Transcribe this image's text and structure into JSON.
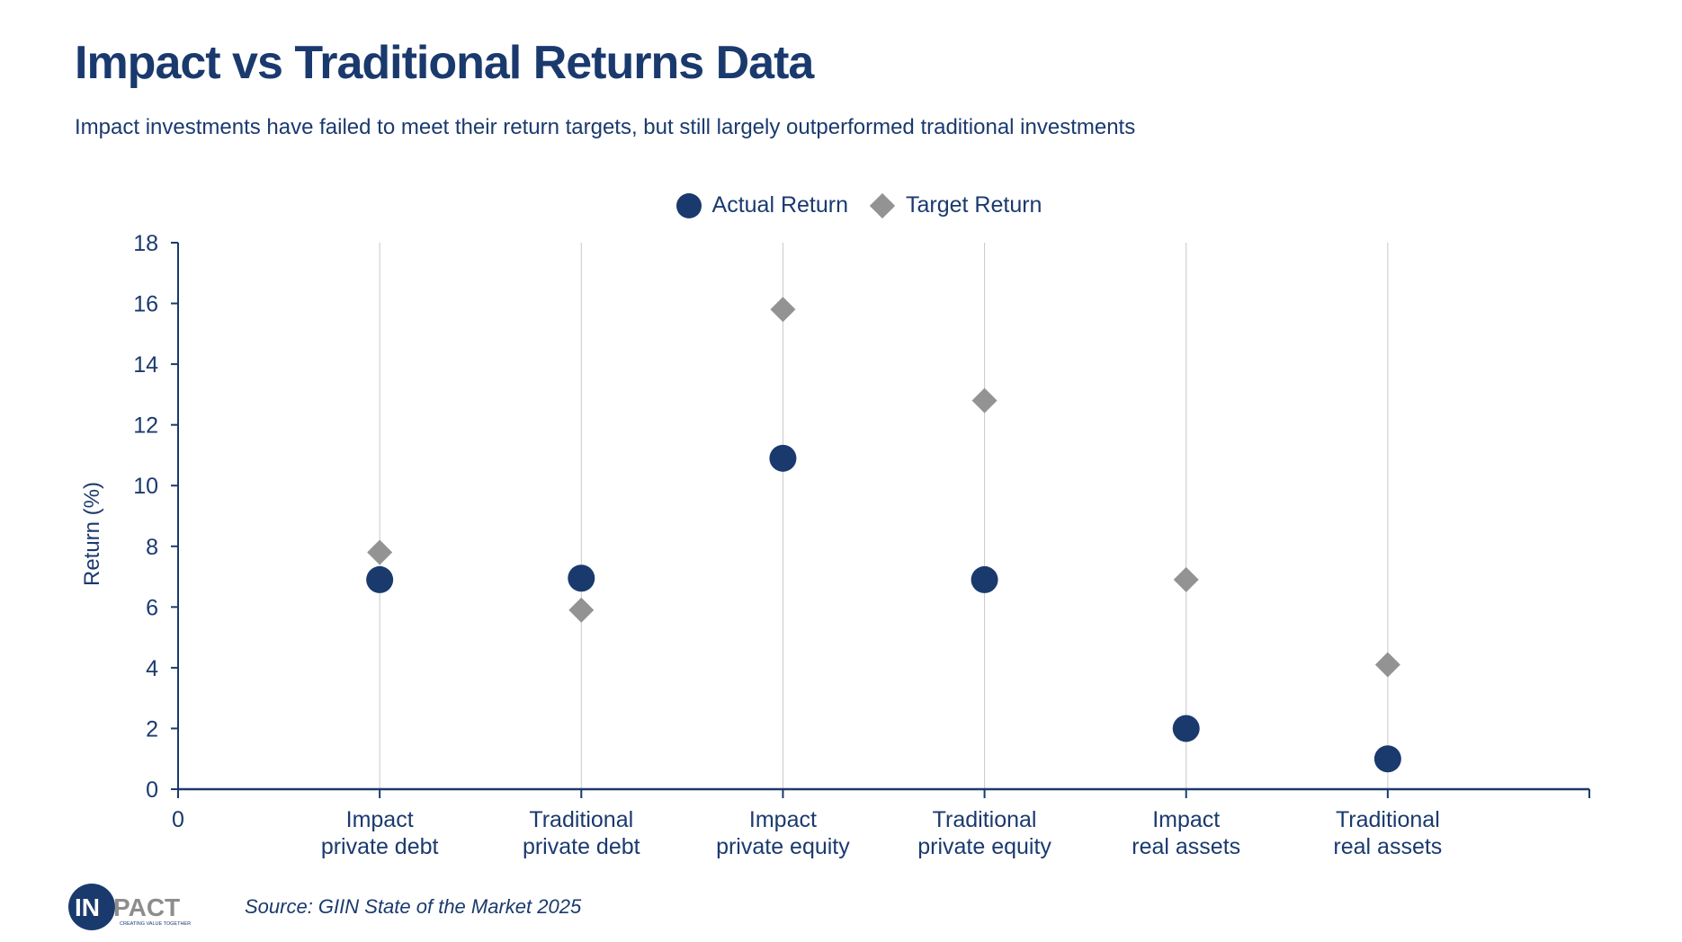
{
  "header": {
    "title": "Impact vs Traditional Returns Data",
    "subtitle": "Impact investments have failed to meet their return targets, but still largely outperformed traditional investments"
  },
  "footer": {
    "source": "Source: GIIN State of the Market 2025",
    "logo": {
      "text_main_1": "IN",
      "text_main_2": "PACT",
      "tagline": "CREATING VALUE TOGETHER"
    }
  },
  "colors": {
    "actual": "#1a3a6e",
    "target": "#939393",
    "axis": "#1a3a6e",
    "grid": "#c8c8c8"
  },
  "chart_data": {
    "type": "scatter",
    "title": "Impact vs Traditional Returns Data",
    "xlabel": "",
    "ylabel": "Return (%)",
    "ylim": [
      0,
      18
    ],
    "yticks": [
      "0",
      "2",
      "4",
      "6",
      "8",
      "10",
      "12",
      "14",
      "16",
      "18"
    ],
    "xlim": [
      0,
      7
    ],
    "x_zero_label": "0",
    "categories": [
      [
        "Impact",
        "private debt"
      ],
      [
        "Traditional",
        "private debt"
      ],
      [
        "Impact",
        "private equity"
      ],
      [
        "Traditional",
        "private equity"
      ],
      [
        "Impact",
        "real assets"
      ],
      [
        "Traditional",
        "real assets"
      ]
    ],
    "legend_position": "top-center",
    "series": [
      {
        "name": "Actual Return",
        "marker": "circle",
        "values": [
          6.9,
          6.95,
          10.9,
          6.9,
          2.0,
          1.0
        ]
      },
      {
        "name": "Target Return",
        "marker": "diamond",
        "values": [
          7.8,
          5.9,
          15.8,
          12.8,
          6.9,
          4.1
        ]
      }
    ]
  }
}
